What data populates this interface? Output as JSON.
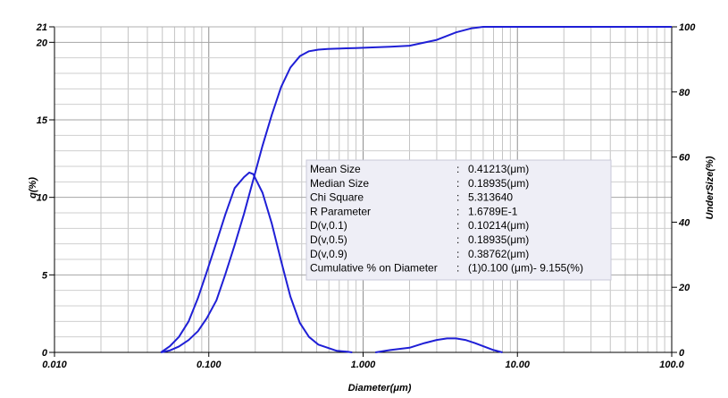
{
  "chart_data": {
    "type": "line",
    "xlabel": "Diameter(μm)",
    "ylabel_left": "q(%)",
    "ylabel_right": "UnderSize(%)",
    "x_scale": "log",
    "xlim": [
      0.01,
      100
    ],
    "ylim_left": [
      0,
      21
    ],
    "ylim_right": [
      0,
      100
    ],
    "grid": true,
    "x_ticks": [
      {
        "value": 0.01,
        "label": "0.010"
      },
      {
        "value": 0.1,
        "label": "0.100"
      },
      {
        "value": 1,
        "label": "1.000"
      },
      {
        "value": 10,
        "label": "10.00"
      },
      {
        "value": 100,
        "label": "100.0"
      }
    ],
    "y_ticks_left": [
      {
        "value": 0,
        "label": "0"
      },
      {
        "value": 5,
        "label": "5"
      },
      {
        "value": 10,
        "label": "10"
      },
      {
        "value": 15,
        "label": "15"
      },
      {
        "value": 20,
        "label": "20"
      },
      {
        "value": 21,
        "label": "21"
      }
    ],
    "y_ticks_right": [
      {
        "value": 0,
        "label": "0"
      },
      {
        "value": 20,
        "label": "20"
      },
      {
        "value": 40,
        "label": "40"
      },
      {
        "value": 60,
        "label": "60"
      },
      {
        "value": 80,
        "label": "80"
      },
      {
        "value": 100,
        "label": "100"
      }
    ],
    "series": [
      {
        "axis": "left",
        "color": "#1f1fd6",
        "x": [
          0.049,
          0.056,
          0.064,
          0.074,
          0.085,
          0.097,
          0.112,
          0.128,
          0.147,
          0.169,
          0.183,
          0.194,
          0.223,
          0.256,
          0.294,
          0.338,
          0.389,
          0.446,
          0.513,
          0.589,
          0.676,
          0.776,
          0.85
        ],
        "y": [
          0.0,
          0.4,
          1.0,
          2.0,
          3.5,
          5.2,
          7.1,
          8.9,
          10.6,
          11.3,
          11.6,
          11.5,
          10.3,
          8.3,
          5.9,
          3.6,
          1.9,
          1.0,
          0.5,
          0.3,
          0.1,
          0.05,
          0.0
        ]
      },
      {
        "axis": "left",
        "color": "#1f1fd6",
        "x": [
          1.2,
          1.5,
          2.0,
          2.5,
          3.0,
          3.5,
          4.0,
          4.6,
          5.3,
          6.0,
          7.0,
          8.0
        ],
        "y": [
          0.0,
          0.15,
          0.3,
          0.6,
          0.8,
          0.9,
          0.9,
          0.8,
          0.6,
          0.4,
          0.15,
          0.0
        ]
      },
      {
        "axis": "right",
        "color": "#1f1fd6",
        "x": [
          0.049,
          0.056,
          0.064,
          0.074,
          0.085,
          0.097,
          0.112,
          0.128,
          0.147,
          0.169,
          0.194,
          0.223,
          0.256,
          0.294,
          0.338,
          0.389,
          0.446,
          0.513,
          0.589,
          0.676,
          0.776,
          0.891,
          1.2,
          1.5,
          2.0,
          3.0,
          4.0,
          5.0,
          6.0,
          7.0,
          8.0,
          100
        ],
        "y": [
          0.0,
          0.6,
          1.8,
          3.8,
          6.5,
          10.5,
          16.0,
          24.0,
          33.0,
          42.5,
          53.0,
          63.5,
          73.0,
          81.5,
          87.5,
          91.0,
          92.5,
          93.0,
          93.2,
          93.3,
          93.4,
          93.5,
          93.7,
          93.9,
          94.2,
          96.0,
          98.3,
          99.5,
          100.0,
          100.0,
          100.0,
          100.0
        ]
      }
    ],
    "stats": [
      {
        "label": "Mean Size",
        "sep": ":",
        "value": "0.41213(μm)"
      },
      {
        "label": "Median Size",
        "sep": ":",
        "value": "0.18935(μm)"
      },
      {
        "label": "Chi Square",
        "sep": ":",
        "value": "5.313640"
      },
      {
        "label": "R Parameter",
        "sep": ":",
        "value": "1.6789E-1"
      },
      {
        "label": "D(v,0.1)",
        "sep": ":",
        "value": "0.10214(μm)"
      },
      {
        "label": "D(v,0.5)",
        "sep": ":",
        "value": "0.18935(μm)"
      },
      {
        "label": "D(v,0.9)",
        "sep": ":",
        "value": "0.38762(μm)"
      },
      {
        "label": "Cumulative % on Diameter",
        "sep": ":",
        "value": "(1)0.100 (μm)-    9.155(%)"
      }
    ],
    "stats_box_color": "#eeeef6"
  }
}
